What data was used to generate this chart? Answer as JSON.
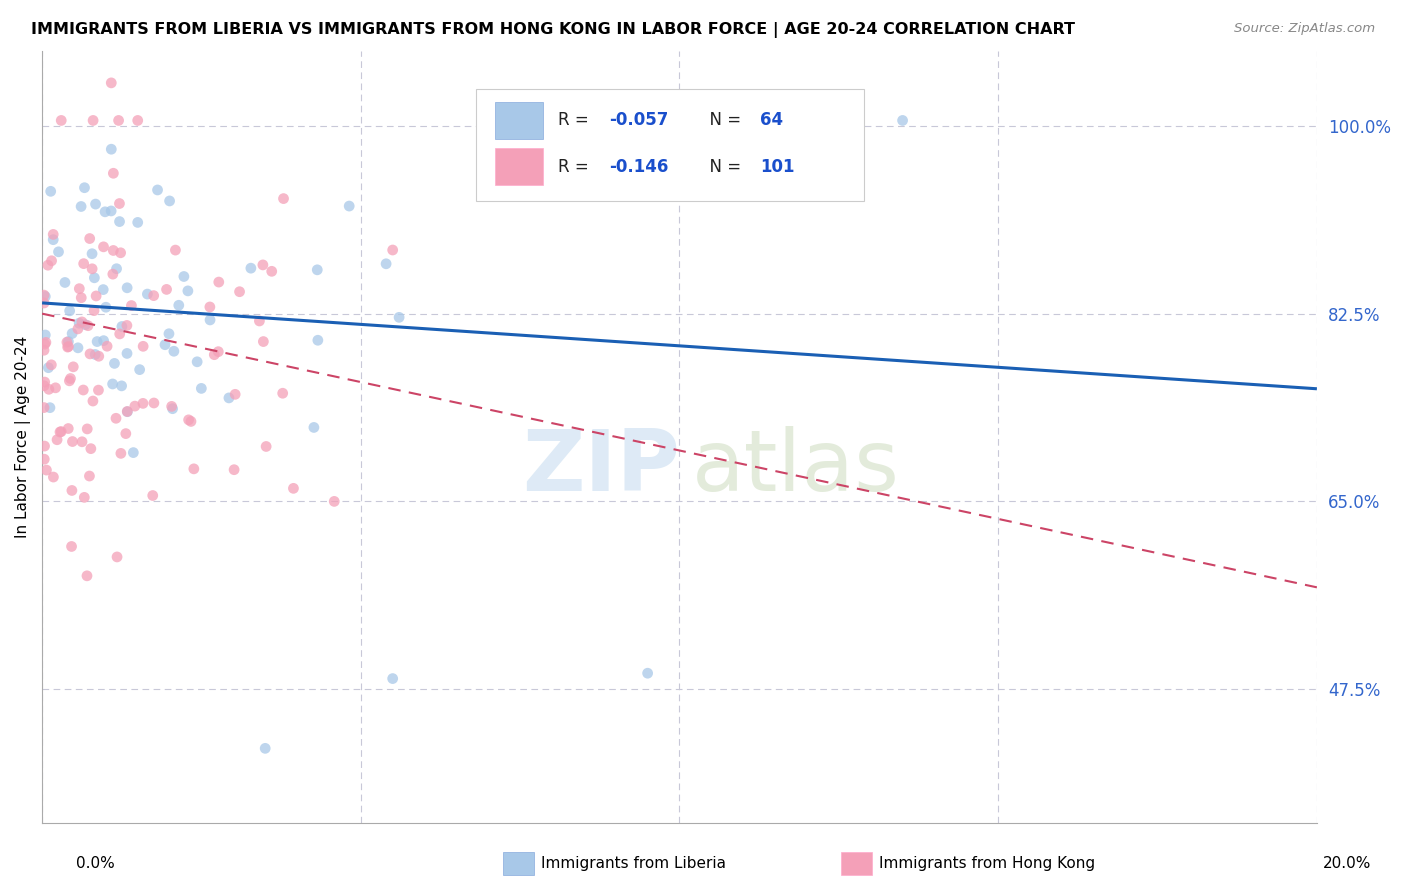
{
  "title": "IMMIGRANTS FROM LIBERIA VS IMMIGRANTS FROM HONG KONG IN LABOR FORCE | AGE 20-24 CORRELATION CHART",
  "source": "Source: ZipAtlas.com",
  "ylabel": "In Labor Force | Age 20-24",
  "y_ticks": [
    47.5,
    65.0,
    82.5,
    100.0
  ],
  "y_tick_labels": [
    "47.5%",
    "65.0%",
    "82.5%",
    "100.0%"
  ],
  "x_range": [
    0.0,
    20.0
  ],
  "y_range": [
    35.0,
    107.0
  ],
  "blue_R": "-0.057",
  "blue_N": "64",
  "pink_R": "-0.146",
  "pink_N": "101",
  "blue_color": "#a8c8e8",
  "pink_color": "#f4a0b8",
  "blue_trend_color": "#1a5fb4",
  "pink_trend_color": "#cc4466",
  "legend_label_blue": "Immigrants from Liberia",
  "legend_label_pink": "Immigrants from Hong Kong",
  "blue_trend_y0": 83.5,
  "blue_trend_y1": 75.5,
  "pink_trend_y0": 82.5,
  "pink_trend_y1": 57.0,
  "grid_color": "#c8c8d8",
  "spine_color": "#aaaaaa"
}
